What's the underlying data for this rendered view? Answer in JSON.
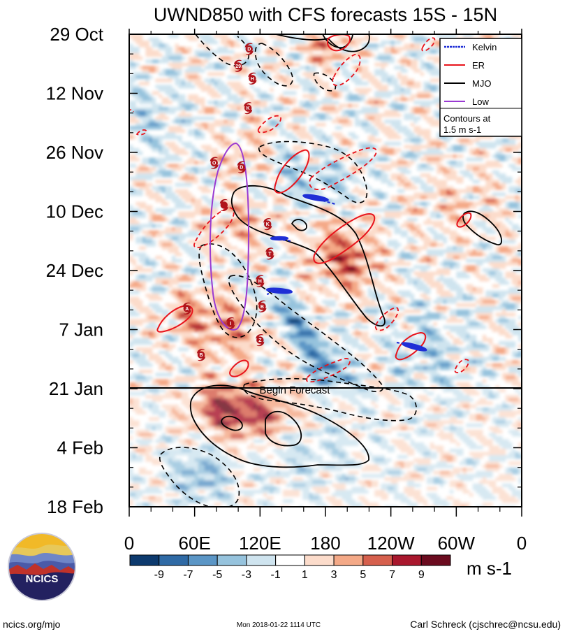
{
  "chart_data": {
    "type": "heatmap",
    "title": "UWND850 with CFS forecasts  15S - 15N",
    "y_tick_labels": [
      "29 Oct",
      "12 Nov",
      "26 Nov",
      "10 Dec",
      "24 Dec",
      "7 Jan",
      "21 Jan",
      "4 Feb",
      "18 Feb"
    ],
    "x_tick_labels": [
      "0",
      "60E",
      "120E",
      "180",
      "120W",
      "60W",
      "0"
    ],
    "x_range": [
      0,
      360
    ],
    "y_range_days": [
      0,
      112
    ],
    "forecast_start_day": 84,
    "forecast_label": "Begin Forecast",
    "colorbar": {
      "labels": [
        "-9",
        "-7",
        "-5",
        "-3",
        "-1",
        "1",
        "3",
        "5",
        "7",
        "9"
      ],
      "colors": [
        "#0d3a6e",
        "#2f6aa5",
        "#5b96c6",
        "#96c3dd",
        "#cfe4ef",
        "#ffffff",
        "#fcdccb",
        "#f4a987",
        "#d6604d",
        "#a9172d",
        "#6b0b1f"
      ],
      "units": "m s-1"
    },
    "legend": {
      "items": [
        {
          "label": "Kelvin",
          "color": "#1f2fd6"
        },
        {
          "label": "ER",
          "color": "#e8141c"
        },
        {
          "label": "MJO",
          "color": "#000000"
        },
        {
          "label": "Low",
          "color": "#9a3ad2"
        }
      ],
      "note_line1": "Contours at",
      "note_line2": "1.5 m s-1"
    },
    "storm_markers": [
      {
        "lon": 110,
        "day": 3.5,
        "letter": "D"
      },
      {
        "lon": 100,
        "day": 7.5,
        "letter": "29"
      },
      {
        "lon": 113,
        "day": 10.5,
        "letter": "H"
      },
      {
        "lon": 109,
        "day": 17.5,
        "letter": "K"
      },
      {
        "lon": 78,
        "day": 30.5,
        "letter": "O"
      },
      {
        "lon": 103,
        "day": 31.5,
        "letter": "D"
      },
      {
        "lon": 87,
        "day": 40.5,
        "letter": ""
      },
      {
        "lon": 127,
        "day": 45,
        "letter": "K"
      },
      {
        "lon": 129,
        "day": 52,
        "letter": "T"
      },
      {
        "lon": 120,
        "day": 58.5,
        "letter": "H"
      },
      {
        "lon": 122,
        "day": 64.5,
        "letter": "B"
      },
      {
        "lon": 53,
        "day": 65,
        "letter": "A"
      },
      {
        "lon": 93,
        "day": 68.5,
        "letter": "I"
      },
      {
        "lon": 120,
        "day": 72.5,
        "letter": "Z"
      },
      {
        "lon": 66,
        "day": 76,
        "letter": "B"
      }
    ]
  },
  "footer": {
    "logo_text": "NCICS",
    "url": "ncics.org/mjo",
    "timestamp": "Mon 2018-01-22 1114 UTC",
    "author": "Carl Schreck (cjschrec@ncsu.edu)"
  }
}
